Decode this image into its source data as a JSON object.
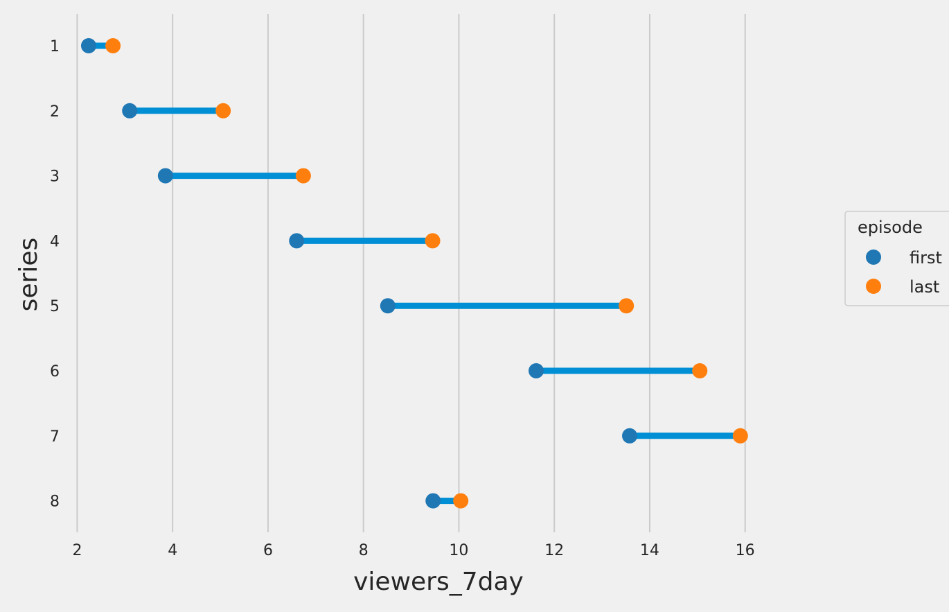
{
  "chart_data": {
    "type": "dumbbell",
    "xlabel": "viewers_7day",
    "ylabel": "series",
    "xlim": [
      1.95,
      17.05
    ],
    "xticks": [
      2,
      4,
      6,
      8,
      10,
      12,
      14,
      16
    ],
    "categories": [
      "1",
      "2",
      "3",
      "4",
      "5",
      "6",
      "7",
      "8"
    ],
    "series": [
      {
        "name": "first",
        "values": [
          2.24,
          3.1,
          3.85,
          6.6,
          8.51,
          11.62,
          13.58,
          9.46
        ]
      },
      {
        "name": "last",
        "values": [
          2.75,
          5.06,
          6.74,
          9.45,
          13.51,
          15.05,
          15.9,
          10.04
        ]
      }
    ],
    "legend": {
      "title": "episode",
      "position": "right"
    },
    "grid": "vertical",
    "colors": {
      "background": "#f0f0f0",
      "grid": "#cbcbcb",
      "connector": "#008fd5",
      "first": "#1f77b4",
      "last": "#ff7f0e",
      "text": "#262626",
      "legend_border": "#cccccc"
    }
  }
}
